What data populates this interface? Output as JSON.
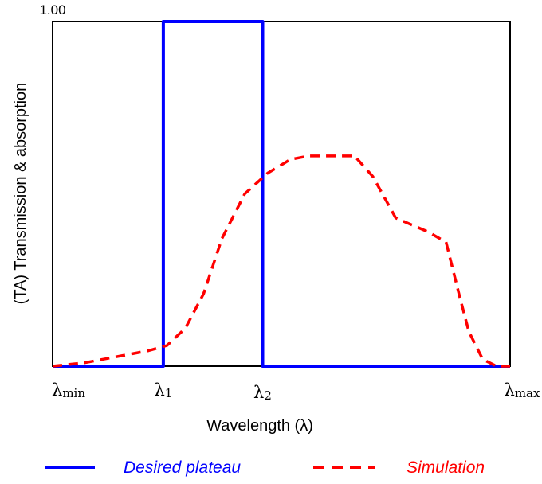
{
  "chart_data": {
    "type": "line",
    "ylabel": "(TA) Transmission & absorption",
    "xlabel": "Wavelength (λ)",
    "ytick_top": "1.00",
    "ylim": [
      0,
      1.0
    ],
    "xticks": [
      {
        "x": 0.0,
        "base": "λ",
        "sub": "min"
      },
      {
        "x": 0.242,
        "base": "λ",
        "sub": "1"
      },
      {
        "x": 0.459,
        "base": "λ",
        "sub": "2"
      },
      {
        "x": 1.0,
        "base": "λ",
        "sub": "max"
      }
    ],
    "xlim": [
      0,
      1
    ],
    "series": [
      {
        "name": "Desired plateau",
        "color": "#0000ff",
        "style": "solid",
        "x": [
          0.0,
          0.242,
          0.242,
          0.459,
          0.459,
          1.0
        ],
        "y": [
          0.0,
          0.0,
          1.0,
          1.0,
          0.0,
          0.0
        ]
      },
      {
        "name": "Simulation",
        "color": "#ff0000",
        "style": "dashed",
        "x": [
          0.0,
          0.07,
          0.15,
          0.21,
          0.25,
          0.29,
          0.33,
          0.37,
          0.42,
          0.47,
          0.52,
          0.56,
          0.6,
          0.66,
          0.7,
          0.75,
          0.82,
          0.86,
          0.89,
          0.91,
          0.94,
          0.97,
          1.0
        ],
        "y": [
          0.0,
          0.01,
          0.03,
          0.045,
          0.06,
          0.11,
          0.21,
          0.37,
          0.5,
          0.56,
          0.6,
          0.61,
          0.61,
          0.61,
          0.55,
          0.43,
          0.39,
          0.36,
          0.2,
          0.1,
          0.02,
          0.0,
          0.0
        ]
      }
    ]
  }
}
